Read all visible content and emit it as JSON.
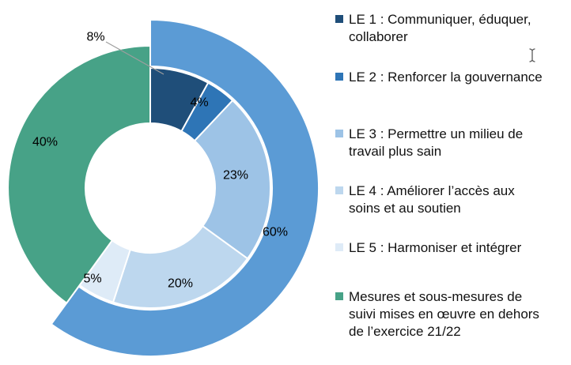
{
  "figure": {
    "background": "#ffffff"
  },
  "chart_data": {
    "type": "doughnut",
    "title": "",
    "unit": "%",
    "legend_position": "right",
    "series": [
      {
        "id": "inner-breakdown",
        "ring": "inner",
        "segments": [
          {
            "name": "LE 1 : Communiquer, éduquer, collaborer",
            "value": 8,
            "label": "8%",
            "color": "#1f4e79"
          },
          {
            "name": "LE 2 : Renforcer la gouvernance",
            "value": 4,
            "label": "4%",
            "color": "#2e75b6"
          },
          {
            "name": "LE 3 : Permettre un milieu de travail plus sain",
            "value": 23,
            "label": "23%",
            "color": "#9dc3e6"
          },
          {
            "name": "LE 4 : Améliorer l’accès aux soins et au soutien",
            "value": 20,
            "label": "20%",
            "color": "#bdd7ee"
          },
          {
            "name": "LE 5 : Harmoniser et intégrer",
            "value": 5,
            "label": "5%",
            "color": "#deebf7"
          },
          {
            "name": "Mesures et sous-mesures de suivi mises en œuvre en dehors de l’exercice 21/22",
            "value": 40,
            "label": "40%",
            "color": "#47a287"
          }
        ]
      },
      {
        "id": "outer-total",
        "ring": "outer",
        "segments": [
          {
            "name": "outer-total-le",
            "value": 60,
            "label": "60%",
            "color": "#5b9bd5"
          }
        ]
      }
    ]
  },
  "legend": {
    "items": [
      {
        "label": "LE 1 : Communiquer, éduquer,\ncollaborer",
        "color": "#1f4e79"
      },
      {
        "label": "LE 2 : Renforcer la gouvernance",
        "color": "#2e75b6"
      },
      {
        "label": "LE 3 : Permettre un milieu de\ntravail plus sain",
        "color": "#9dc3e6"
      },
      {
        "label": "LE 4 : Améliorer l’accès aux\nsoins et au soutien",
        "color": "#bdd7ee"
      },
      {
        "label": "LE 5 : Harmoniser et intégrer",
        "color": "#deebf7"
      },
      {
        "label": "Mesures et sous-mesures de\nsuivi mises en œuvre en dehors\nde l’exercice 21/22",
        "color": "#47a287"
      }
    ]
  }
}
